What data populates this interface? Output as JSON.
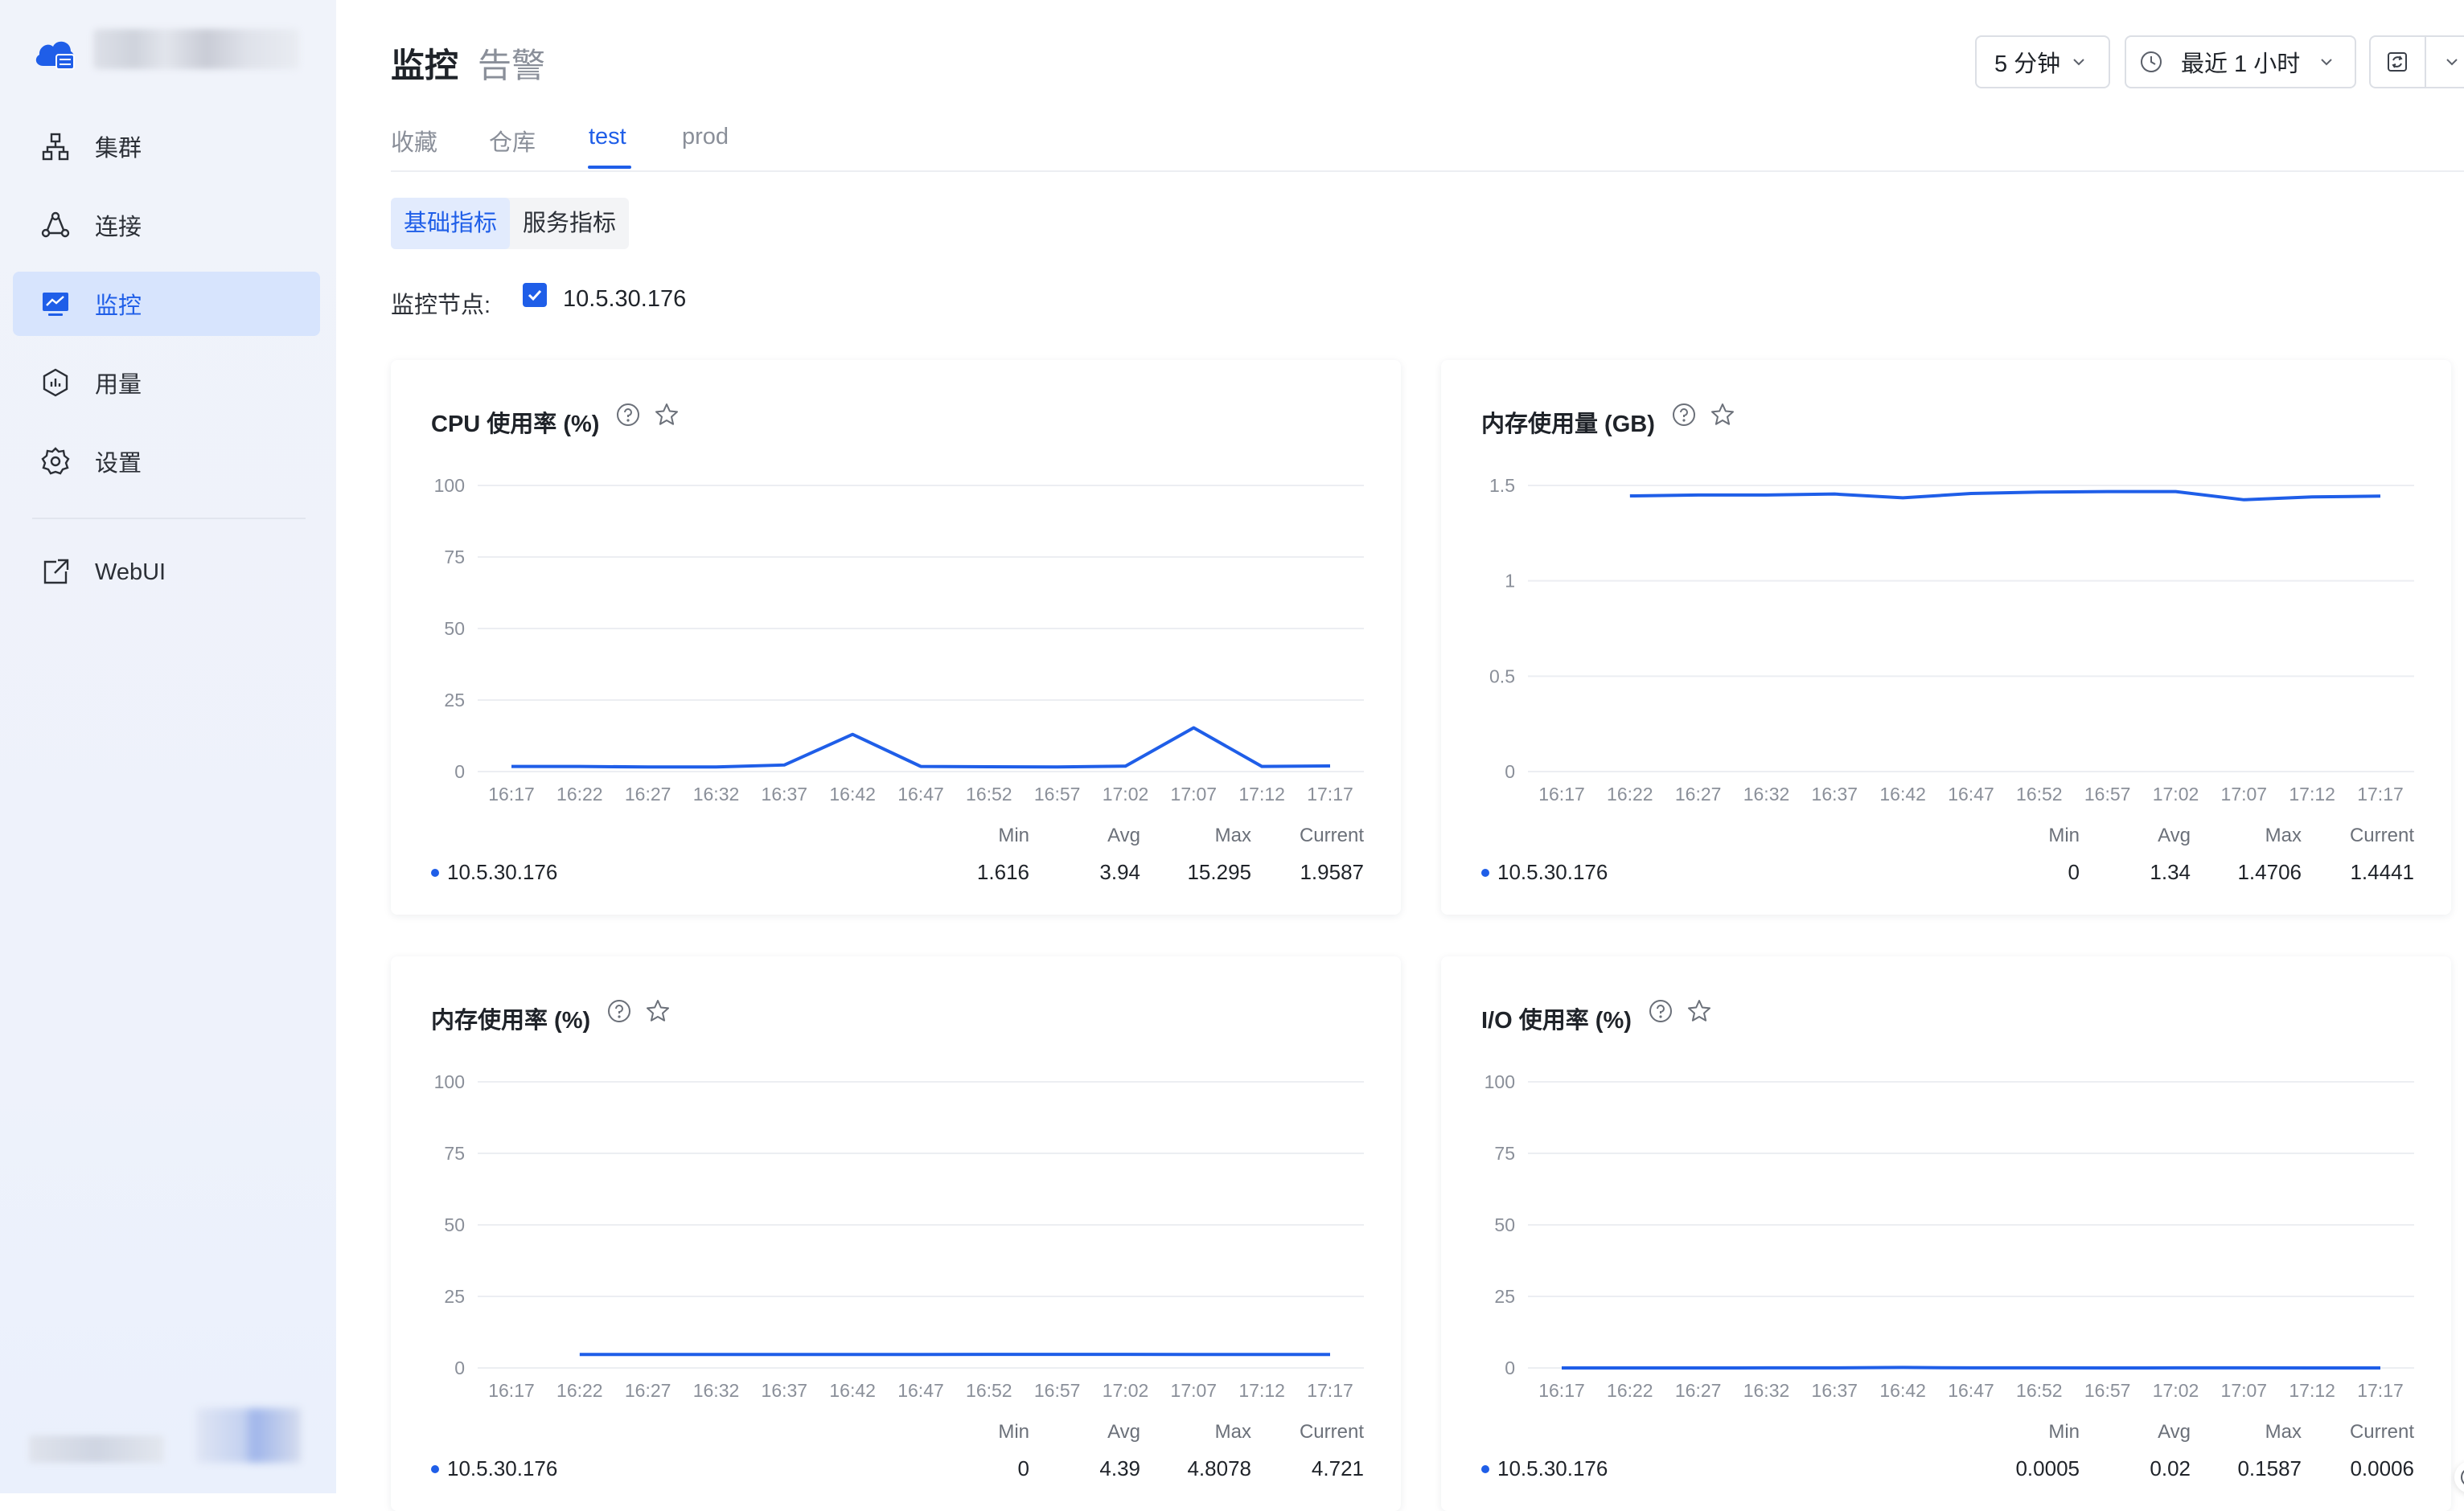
{
  "header": {
    "title": "监控",
    "subtitle": "告警",
    "interval": "5 分钟",
    "time_range": "最近 1 小时"
  },
  "sidebar": {
    "items": [
      {
        "label": "集群",
        "icon": "cluster-icon"
      },
      {
        "label": "连接",
        "icon": "connection-icon"
      },
      {
        "label": "监控",
        "icon": "monitor-icon",
        "active": true
      },
      {
        "label": "用量",
        "icon": "usage-icon"
      },
      {
        "label": "设置",
        "icon": "gear-icon"
      }
    ],
    "webui": "WebUI"
  },
  "tabs": [
    "收藏",
    "仓库",
    "test",
    "prod"
  ],
  "active_tab": "test",
  "segments": [
    "基础指标",
    "服务指标"
  ],
  "active_segment": "基础指标",
  "node_filter": {
    "label": "监控节点:",
    "value": "10.5.30.176",
    "checked": true
  },
  "stat_headers": {
    "min": "Min",
    "avg": "Avg",
    "max": "Max",
    "current": "Current"
  },
  "colors": {
    "accent": "#1f5ee8",
    "grid": "#eceef2",
    "sidebar_active_bg": "#d7e4fd"
  },
  "chart_data": [
    {
      "type": "line",
      "title": "CPU 使用率 (%)",
      "x": [
        "16:17",
        "16:22",
        "16:27",
        "16:32",
        "16:37",
        "16:42",
        "16:47",
        "16:52",
        "16:57",
        "17:02",
        "17:07",
        "17:12",
        "17:17"
      ],
      "y_ticks": [
        "100",
        "75",
        "50",
        "25",
        "0"
      ],
      "ylim": [
        0,
        100
      ],
      "series": [
        {
          "name": "10.5.30.176",
          "values": [
            1.8,
            1.8,
            1.6,
            1.6,
            2.3,
            13.0,
            1.8,
            1.7,
            1.6,
            1.9,
            15.3,
            1.8,
            1.96
          ]
        }
      ],
      "stats": {
        "min": "1.616",
        "avg": "3.94",
        "max": "15.295",
        "current": "1.9587"
      }
    },
    {
      "type": "line",
      "title": "内存使用量 (GB)",
      "x": [
        "16:17",
        "16:22",
        "16:27",
        "16:32",
        "16:37",
        "16:42",
        "16:47",
        "16:52",
        "16:57",
        "17:02",
        "17:07",
        "17:12",
        "17:17"
      ],
      "y_ticks": [
        "1.5",
        "1",
        "0.5",
        "0"
      ],
      "ylim": [
        0,
        1.5
      ],
      "series": [
        {
          "name": "10.5.30.176",
          "values": [
            null,
            1.445,
            1.45,
            1.45,
            1.455,
            1.435,
            1.458,
            1.465,
            1.468,
            1.468,
            1.425,
            1.44,
            1.4441
          ]
        }
      ],
      "stats": {
        "min": "0",
        "avg": "1.34",
        "max": "1.4706",
        "current": "1.4441"
      }
    },
    {
      "type": "line",
      "title": "内存使用率 (%)",
      "x": [
        "16:17",
        "16:22",
        "16:27",
        "16:32",
        "16:37",
        "16:42",
        "16:47",
        "16:52",
        "16:57",
        "17:02",
        "17:07",
        "17:12",
        "17:17"
      ],
      "y_ticks": [
        "100",
        "75",
        "50",
        "25",
        "0"
      ],
      "ylim": [
        0,
        100
      ],
      "series": [
        {
          "name": "10.5.30.176",
          "values": [
            null,
            4.72,
            4.7,
            4.7,
            4.72,
            4.7,
            4.72,
            4.75,
            4.75,
            4.74,
            4.7,
            4.72,
            4.721
          ]
        }
      ],
      "stats": {
        "min": "0",
        "avg": "4.39",
        "max": "4.8078",
        "current": "4.721"
      }
    },
    {
      "type": "line",
      "title": "I/O 使用率 (%)",
      "x": [
        "16:17",
        "16:22",
        "16:27",
        "16:32",
        "16:37",
        "16:42",
        "16:47",
        "16:52",
        "16:57",
        "17:02",
        "17:07",
        "17:12",
        "17:17"
      ],
      "y_ticks": [
        "100",
        "75",
        "50",
        "25",
        "0"
      ],
      "ylim": [
        0,
        100
      ],
      "series": [
        {
          "name": "10.5.30.176",
          "values": [
            0.01,
            0.01,
            0.01,
            0.02,
            0.02,
            0.16,
            0.02,
            0.02,
            0.01,
            0.02,
            0.02,
            0.01,
            0.0006
          ]
        }
      ],
      "stats": {
        "min": "0.0005",
        "avg": "0.02",
        "max": "0.1587",
        "current": "0.0006"
      }
    }
  ]
}
